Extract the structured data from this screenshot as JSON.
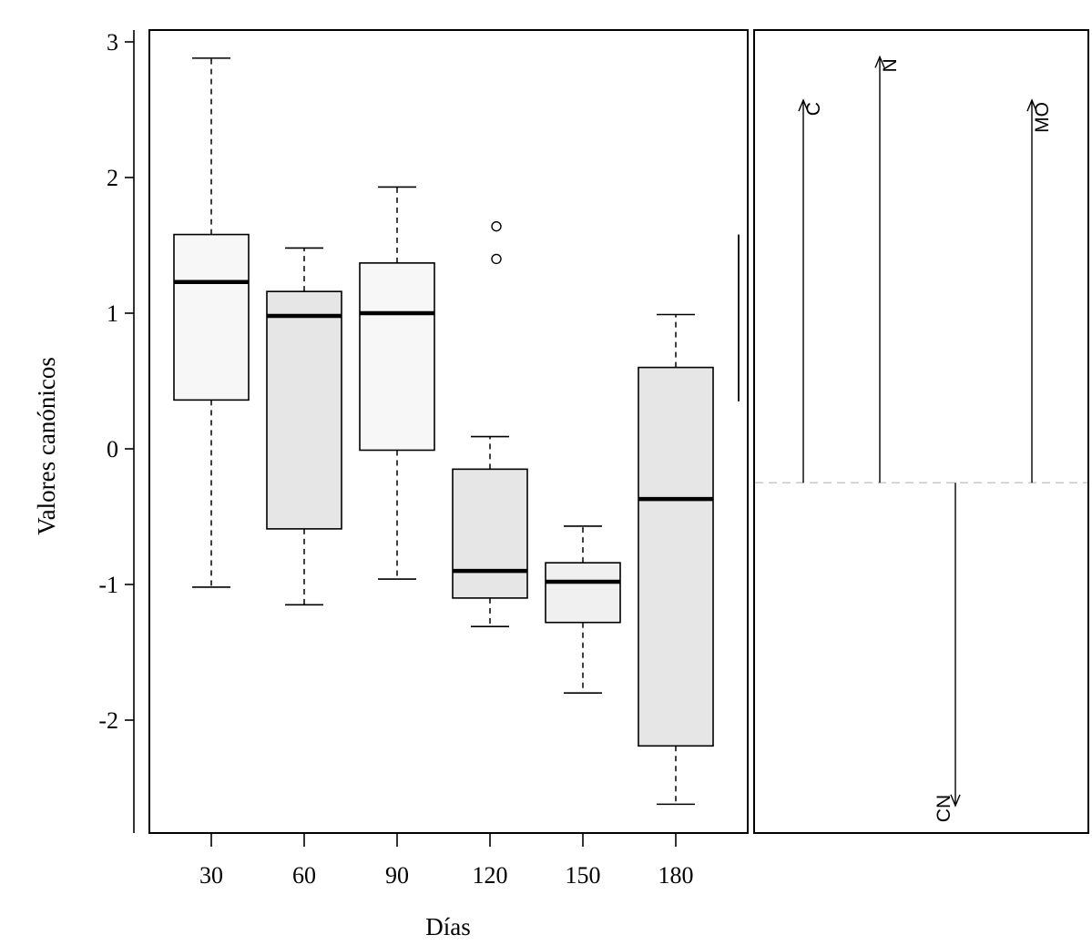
{
  "chart_data": {
    "type": "boxplot",
    "xlabel": "Días",
    "ylabel": "Valores canónicos",
    "categories": [
      "30",
      "60",
      "90",
      "120",
      "150",
      "180"
    ],
    "ylim": [
      -2.85,
      3.1
    ],
    "yticks": [
      3,
      2,
      1,
      0,
      -1,
      -2
    ],
    "ytick_labels": [
      "3",
      "2",
      "1",
      "0",
      "-1",
      "-2"
    ],
    "boxes": [
      {
        "category": "30",
        "whisker_low": -1.02,
        "q1": 0.36,
        "median": 1.23,
        "q3": 1.58,
        "whisker_high": 2.88,
        "outliers": [],
        "fill": "#f7f7f7"
      },
      {
        "category": "60",
        "whisker_low": -1.15,
        "q1": -0.59,
        "median": 0.98,
        "q3": 1.16,
        "whisker_high": 1.48,
        "outliers": [],
        "fill": "#e6e6e6"
      },
      {
        "category": "90",
        "whisker_low": -0.96,
        "q1": -0.01,
        "median": 1.0,
        "q3": 1.37,
        "whisker_high": 1.93,
        "outliers": [],
        "fill": "#f7f7f7"
      },
      {
        "category": "120",
        "whisker_low": -1.31,
        "q1": -1.1,
        "median": -0.9,
        "q3": -0.15,
        "whisker_high": 0.09,
        "outliers": [
          1.4,
          1.64
        ],
        "fill": "#e6e6e6"
      },
      {
        "category": "150",
        "whisker_low": -1.8,
        "q1": -1.28,
        "median": -0.98,
        "q3": -0.84,
        "whisker_high": -0.57,
        "outliers": [],
        "fill": "#f0f0f0"
      },
      {
        "category": "180",
        "whisker_low": -2.62,
        "q1": -2.19,
        "median": -0.37,
        "q3": 0.6,
        "whisker_high": 0.99,
        "outliers": [],
        "fill": "#e6e6e6"
      }
    ],
    "side_line": {
      "from": 0.35,
      "to": 1.58
    },
    "biplot": {
      "baseline": -0.25,
      "arrows": [
        {
          "label": "C",
          "tip": 2.57
        },
        {
          "label": "N",
          "tip": 2.89
        },
        {
          "label": "CN",
          "tip": -2.63
        },
        {
          "label": "MO",
          "tip": 2.57
        }
      ]
    }
  }
}
